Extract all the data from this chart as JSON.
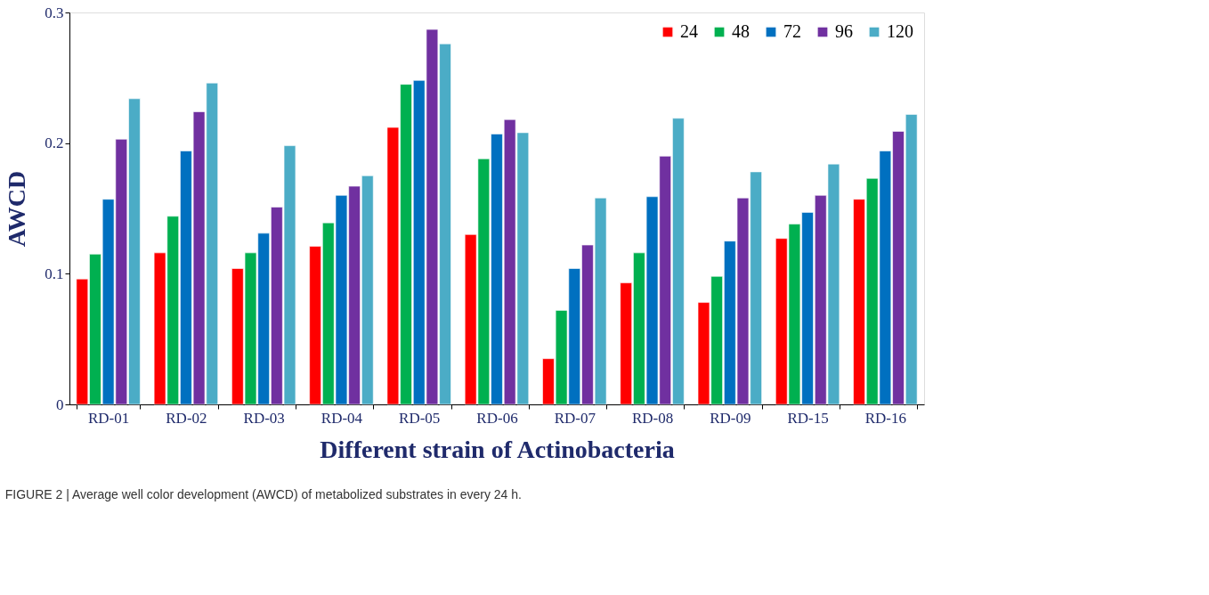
{
  "chart_data": {
    "type": "bar",
    "xlabel": "Different strain of Actinobacteria",
    "ylabel": "AWCD",
    "categories": [
      "RD-01",
      "RD-02",
      "RD-03",
      "RD-04",
      "RD-05",
      "RD-06",
      "RD-07",
      "RD-08",
      "RD-09",
      "RD-15",
      "RD-16"
    ],
    "series": [
      {
        "name": "24",
        "color": "#ff0000",
        "values": [
          0.096,
          0.116,
          0.104,
          0.121,
          0.212,
          0.13,
          0.035,
          0.093,
          0.078,
          0.127,
          0.157
        ]
      },
      {
        "name": "48",
        "color": "#00b050",
        "values": [
          0.115,
          0.144,
          0.116,
          0.139,
          0.245,
          0.188,
          0.072,
          0.116,
          0.098,
          0.138,
          0.173
        ]
      },
      {
        "name": "72",
        "color": "#0070c0",
        "values": [
          0.157,
          0.194,
          0.131,
          0.16,
          0.248,
          0.207,
          0.104,
          0.159,
          0.125,
          0.147,
          0.194
        ]
      },
      {
        "name": "96",
        "color": "#7030a0",
        "values": [
          0.203,
          0.224,
          0.151,
          0.167,
          0.287,
          0.218,
          0.122,
          0.19,
          0.158,
          0.16,
          0.209
        ]
      },
      {
        "name": "120",
        "color": "#4bacc6",
        "values": [
          0.234,
          0.246,
          0.198,
          0.175,
          0.276,
          0.208,
          0.158,
          0.219,
          0.178,
          0.184,
          0.222
        ]
      }
    ],
    "ylim": [
      0,
      0.3
    ],
    "yticks": [
      0,
      0.1,
      0.2,
      0.3
    ],
    "grid": false,
    "legend": "top right",
    "annotations": [
      "FIGURE 2 | Average well color development (AWCD) of metabolized substrates in every 24 h."
    ]
  }
}
